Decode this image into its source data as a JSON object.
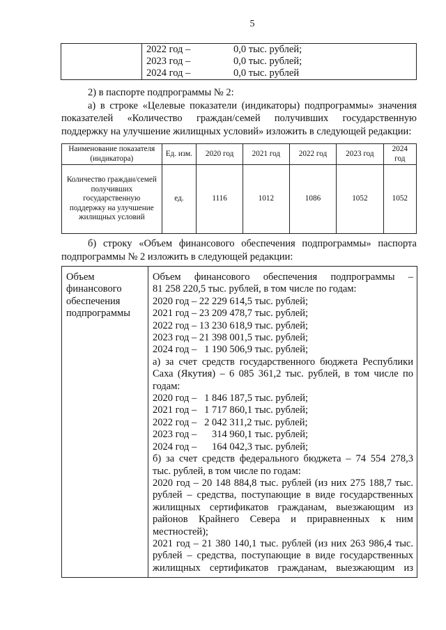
{
  "page_number": "5",
  "top_table": [
    {
      "year": "2022 год –",
      "value": "0,0 тыс. рублей;"
    },
    {
      "year": "2023 год –",
      "value": "0,0 тыс. рублей;"
    },
    {
      "year": "2024 год –",
      "value": "0,0 тыс. рублей"
    }
  ],
  "para1": "2) в паспорте подпрограммы № 2:",
  "para2": "а) в строке «Целевые показатели (индикаторы) подпрограммы» значения показателей «Количество граждан/семей получивших государственную поддержку на улучшение жилищных условий» изложить в следующей редакции:",
  "indicator_table": {
    "headers": [
      "Наименование показателя (индикатора)",
      "Ед. изм.",
      "2020 год",
      "2021 год",
      "2022 год",
      "2023 год",
      "2024 год"
    ],
    "row": [
      "Количество граждан/семей получивших государственную поддержку на улучшение жилищных условий",
      "ед.",
      "1116",
      "1012",
      "1086",
      "1052",
      "1052"
    ]
  },
  "para3": "б) строку «Объем финансового обеспечения подпрограммы» паспорта подпрограммы № 2 изложить в следующей редакции:",
  "finance_table": {
    "label": "Объем финансового обеспечения подпрограммы",
    "lines": [
      "Объем финансового обеспечения подпрограммы –",
      "81 258 220,5 тыс. рублей, в том числе по годам:",
      "2020 год – 22 229 614,5 тыс. рублей;",
      "2021 год – 23 209 478,7 тыс. рублей;",
      "2022 год – 13 230 618,9 тыс. рублей;",
      "2023 год – 21 398 001,5 тыс. рублей;",
      "2024 год –   1 190 506,9 тыс. рублей;",
      "а) за счет средств государственного бюджета Республики",
      "Саха (Якутия) – 6 085 361,2 тыс. рублей, в том числе по",
      "годам:",
      "2020 год –   1 846 187,5 тыс. рублей;",
      "2021 год –   1 717 860,1 тыс. рублей;",
      "2022 год –   2 042 311,2 тыс. рублей;",
      "2023 год –      314 960,1 тыс. рублей;",
      "2024 год –      164 042,3 тыс. рублей;",
      "б) за счет средств федерального бюджета – 74 554 278,3",
      "тыс. рублей, в том числе по годам:",
      "2020 год – 20 148 884,8 тыс. рублей (из них 275 188,7 тыс.",
      "рублей – средства, поступающие в виде государственных",
      "жилищных сертификатов гражданам, выезжающим из",
      "районов Крайнего Севера и приравненных к ним",
      "местностей);",
      "2021 год – 21 380 140,1 тыс. рублей (из них 263 986,4 тыс.",
      "рублей – средства, поступающие в виде государственных",
      "жилищных сертификатов гражданам, выезжающим из"
    ]
  }
}
